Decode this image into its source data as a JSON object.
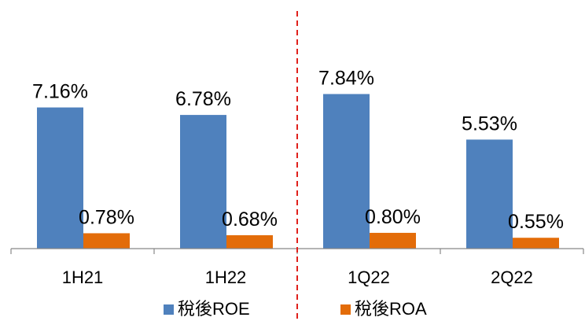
{
  "chart_data": {
    "type": "bar",
    "categories": [
      "1H21",
      "1H22",
      "1Q22",
      "2Q22"
    ],
    "series": [
      {
        "name": "稅後ROE",
        "values": [
          7.16,
          6.78,
          7.84,
          5.53
        ],
        "labels": [
          "7.16%",
          "6.78%",
          "7.84%",
          "5.53%"
        ],
        "color": "#4f81bd"
      },
      {
        "name": "稅後ROA",
        "values": [
          0.78,
          0.68,
          0.8,
          0.55
        ],
        "labels": [
          "0.78%",
          "0.68%",
          "0.80%",
          "0.55%"
        ],
        "color": "#e36c09"
      }
    ],
    "ylim": [
      0,
      8.3
    ],
    "y_axis_visible": false,
    "grid": false,
    "separator": {
      "style": "dashed",
      "color": "#e0201b",
      "between": [
        "1H22",
        "1Q22"
      ]
    },
    "legend": {
      "position": "bottom"
    }
  }
}
